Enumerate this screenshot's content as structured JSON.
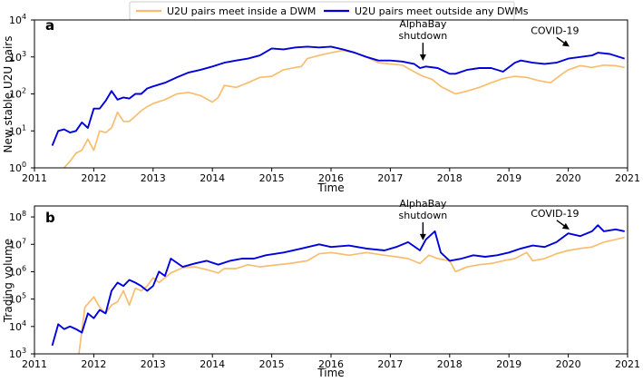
{
  "legend": {
    "placement": "top-center",
    "entries": [
      {
        "label": "U2U pairs meet inside a DWM",
        "color": "#f8bd6e"
      },
      {
        "label": "U2U pairs meet outside any DWMs",
        "color": "#0000dd"
      }
    ]
  },
  "chart_data": [
    {
      "type": "line",
      "panel": "a",
      "xlabel": "Time",
      "ylabel": "New stable U2U pairs",
      "xlim": [
        2011,
        2021
      ],
      "xticks": [
        "2011",
        "2012",
        "2013",
        "2014",
        "2015",
        "2016",
        "2017",
        "2018",
        "2019",
        "2020",
        "2021"
      ],
      "ylim_log10": [
        0,
        4
      ],
      "y_scale": "log",
      "yticks": [
        {
          "base": "10",
          "exp": "0"
        },
        {
          "base": "10",
          "exp": "1"
        },
        {
          "base": "10",
          "exp": "2"
        },
        {
          "base": "10",
          "exp": "3"
        },
        {
          "base": "10",
          "exp": "4"
        }
      ],
      "annotations": [
        {
          "lines": [
            "AlphaBay",
            "shutdown"
          ],
          "x": 2017.55,
          "y": 700
        },
        {
          "lines": [
            "COVID-19"
          ],
          "x": 2020.05,
          "y": 1700
        }
      ],
      "series": [
        {
          "name": "U2U pairs meet inside a DWM",
          "color": "#f8bd6e",
          "x": [
            2011.5,
            2011.6,
            2011.7,
            2011.8,
            2011.9,
            2012.0,
            2012.1,
            2012.2,
            2012.3,
            2012.4,
            2012.5,
            2012.6,
            2012.7,
            2012.8,
            2012.9,
            2013.0,
            2013.2,
            2013.4,
            2013.6,
            2013.8,
            2014.0,
            2014.1,
            2014.2,
            2014.4,
            2014.6,
            2014.8,
            2015.0,
            2015.2,
            2015.4,
            2015.5,
            2015.6,
            2015.8,
            2016.0,
            2016.2,
            2016.4,
            2016.6,
            2016.8,
            2017.0,
            2017.2,
            2017.4,
            2017.55,
            2017.7,
            2017.85,
            2018.0,
            2018.1,
            2018.3,
            2018.5,
            2018.7,
            2018.9,
            2019.1,
            2019.3,
            2019.5,
            2019.7,
            2019.9,
            2020.0,
            2020.2,
            2020.4,
            2020.6,
            2020.8,
            2020.95
          ],
          "y": [
            1,
            1.5,
            2.5,
            3,
            6,
            3,
            10,
            9,
            12,
            32,
            18,
            18,
            25,
            35,
            45,
            55,
            70,
            100,
            110,
            90,
            60,
            80,
            170,
            150,
            200,
            280,
            300,
            450,
            520,
            550,
            900,
            1100,
            1300,
            1500,
            1300,
            1000,
            700,
            650,
            600,
            400,
            300,
            250,
            160,
            120,
            100,
            120,
            150,
            200,
            260,
            300,
            280,
            230,
            200,
            350,
            450,
            580,
            520,
            600,
            580,
            520
          ]
        },
        {
          "name": "U2U pairs meet outside any DWMs",
          "color": "#0000dd",
          "x": [
            2011.3,
            2011.4,
            2011.5,
            2011.6,
            2011.7,
            2011.8,
            2011.9,
            2012.0,
            2012.1,
            2012.2,
            2012.3,
            2012.4,
            2012.5,
            2012.6,
            2012.7,
            2012.8,
            2012.9,
            2013.0,
            2013.2,
            2013.4,
            2013.6,
            2013.8,
            2014.0,
            2014.2,
            2014.4,
            2014.6,
            2014.8,
            2015.0,
            2015.2,
            2015.4,
            2015.6,
            2015.8,
            2016.0,
            2016.2,
            2016.4,
            2016.6,
            2016.8,
            2017.0,
            2017.2,
            2017.4,
            2017.5,
            2017.6,
            2017.8,
            2018.0,
            2018.1,
            2018.3,
            2018.5,
            2018.7,
            2018.9,
            2019.1,
            2019.2,
            2019.4,
            2019.6,
            2019.8,
            2020.0,
            2020.2,
            2020.4,
            2020.5,
            2020.7,
            2020.95
          ],
          "y": [
            4,
            10,
            11,
            9,
            10,
            17,
            12,
            40,
            40,
            65,
            120,
            70,
            80,
            75,
            100,
            100,
            140,
            160,
            200,
            280,
            380,
            450,
            550,
            700,
            800,
            900,
            1100,
            1700,
            1600,
            1800,
            1900,
            1800,
            1900,
            1600,
            1300,
            1000,
            800,
            800,
            750,
            650,
            500,
            550,
            500,
            350,
            350,
            450,
            500,
            500,
            400,
            700,
            800,
            700,
            650,
            700,
            900,
            1000,
            1100,
            1300,
            1200,
            900
          ]
        }
      ]
    },
    {
      "type": "line",
      "panel": "b",
      "xlabel": "Time",
      "ylabel": "Trading volume",
      "xlim": [
        2011,
        2021
      ],
      "xticks": [
        "2011",
        "2012",
        "2013",
        "2014",
        "2015",
        "2016",
        "2017",
        "2018",
        "2019",
        "2020",
        "2021"
      ],
      "ylim_log10": [
        3,
        8.4
      ],
      "y_scale": "log",
      "yticks": [
        {
          "base": "10",
          "exp": "3"
        },
        {
          "base": "10",
          "exp": "4"
        },
        {
          "base": "10",
          "exp": "5"
        },
        {
          "base": "10",
          "exp": "6"
        },
        {
          "base": "10",
          "exp": "7"
        },
        {
          "base": "10",
          "exp": "8"
        }
      ],
      "annotations": [
        {
          "lines": [
            "AlphaBay",
            "shutdown"
          ],
          "x": 2017.55,
          "y": 12000000
        },
        {
          "lines": [
            "COVID-19"
          ],
          "x": 2020.05,
          "y": 30000000
        }
      ],
      "series": [
        {
          "name": "U2U pairs meet inside a DWM",
          "color": "#f8bd6e",
          "x": [
            2011.75,
            2011.85,
            2012.0,
            2012.1,
            2012.2,
            2012.3,
            2012.4,
            2012.5,
            2012.6,
            2012.7,
            2012.8,
            2012.9,
            2013.0,
            2013.1,
            2013.3,
            2013.5,
            2013.7,
            2013.9,
            2014.1,
            2014.2,
            2014.4,
            2014.6,
            2014.8,
            2015.0,
            2015.3,
            2015.6,
            2015.8,
            2016.0,
            2016.3,
            2016.6,
            2016.9,
            2017.1,
            2017.3,
            2017.5,
            2017.65,
            2017.8,
            2018.0,
            2018.1,
            2018.3,
            2018.5,
            2018.7,
            2018.9,
            2019.1,
            2019.3,
            2019.4,
            2019.6,
            2019.8,
            2020.0,
            2020.2,
            2020.4,
            2020.6,
            2020.8,
            2020.95
          ],
          "y": [
            1000,
            50000,
            120000,
            50000,
            30000,
            60000,
            80000,
            200000,
            60000,
            250000,
            200000,
            300000,
            600000,
            400000,
            900000,
            1400000,
            1500000,
            1200000,
            900000,
            1300000,
            1300000,
            1800000,
            1500000,
            1700000,
            2000000,
            2500000,
            4500000,
            5000000,
            4000000,
            5000000,
            4000000,
            3500000,
            3000000,
            2000000,
            4000000,
            3000000,
            2500000,
            1000000,
            1500000,
            1800000,
            2000000,
            2500000,
            3000000,
            5000000,
            2500000,
            3000000,
            4500000,
            6000000,
            7000000,
            8000000,
            12000000,
            15000000,
            18000000
          ]
        },
        {
          "name": "U2U pairs meet outside any DWMs",
          "color": "#0000dd",
          "x": [
            2011.3,
            2011.4,
            2011.5,
            2011.6,
            2011.7,
            2011.8,
            2011.9,
            2012.0,
            2012.1,
            2012.2,
            2012.3,
            2012.4,
            2012.5,
            2012.6,
            2012.7,
            2012.8,
            2012.9,
            2013.0,
            2013.1,
            2013.2,
            2013.3,
            2013.5,
            2013.7,
            2013.9,
            2014.1,
            2014.3,
            2014.5,
            2014.7,
            2014.9,
            2015.2,
            2015.5,
            2015.8,
            2016.0,
            2016.3,
            2016.6,
            2016.9,
            2017.1,
            2017.3,
            2017.5,
            2017.6,
            2017.75,
            2017.85,
            2018.0,
            2018.2,
            2018.4,
            2018.6,
            2018.8,
            2019.0,
            2019.2,
            2019.4,
            2019.6,
            2019.8,
            2020.0,
            2020.2,
            2020.4,
            2020.5,
            2020.6,
            2020.8,
            2020.95
          ],
          "y": [
            2000,
            12000,
            8000,
            10000,
            8000,
            6000,
            30000,
            20000,
            40000,
            30000,
            200000,
            400000,
            300000,
            500000,
            400000,
            300000,
            200000,
            300000,
            1000000,
            700000,
            3000000,
            1500000,
            2000000,
            2500000,
            1800000,
            2500000,
            3000000,
            3000000,
            4000000,
            5000000,
            7000000,
            10000000,
            8000000,
            9000000,
            7000000,
            6000000,
            8000000,
            12000000,
            6000000,
            15000000,
            30000000,
            5000000,
            2500000,
            3000000,
            4000000,
            3500000,
            4000000,
            5000000,
            7000000,
            9000000,
            8000000,
            12000000,
            25000000,
            20000000,
            30000000,
            50000000,
            30000000,
            35000000,
            30000000
          ]
        }
      ]
    }
  ]
}
